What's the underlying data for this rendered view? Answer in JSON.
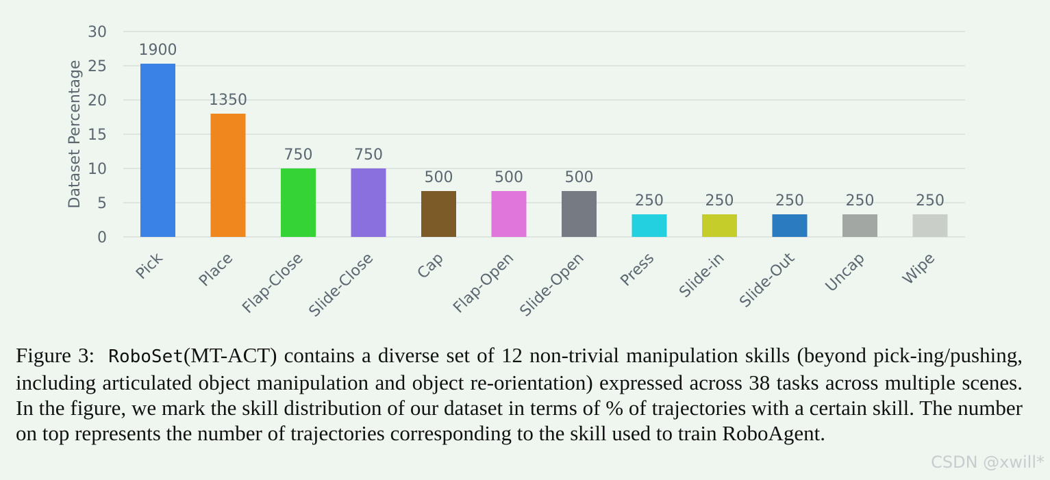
{
  "chart_data": {
    "type": "bar",
    "title": "",
    "xlabel": "",
    "ylabel": "Dataset Percentage",
    "ylim": [
      0,
      30
    ],
    "yticks": [
      0,
      5,
      10,
      15,
      20,
      25,
      30
    ],
    "grid": true,
    "categories": [
      "Pick",
      "Place",
      "Flap-Close",
      "Slide-Close",
      "Cap",
      "Flap-Open",
      "Slide-Open",
      "Press",
      "Slide-in",
      "Slide-Out",
      "Uncap",
      "Wipe"
    ],
    "values": [
      25.3,
      18.0,
      10.0,
      10.0,
      6.7,
      6.7,
      6.7,
      3.3,
      3.3,
      3.3,
      3.3,
      3.3
    ],
    "data_labels": [
      "1900",
      "1350",
      "750",
      "750",
      "500",
      "500",
      "500",
      "250",
      "250",
      "250",
      "250",
      "250"
    ],
    "colors": [
      "#3a82e6",
      "#f0861e",
      "#35d335",
      "#8a6fdf",
      "#7d5b28",
      "#e076dc",
      "#767b83",
      "#22d0e0",
      "#c5cd2b",
      "#2a7bbf",
      "#a3a7a4",
      "#c9cec8"
    ]
  },
  "caption": {
    "label": "Figure 3:",
    "name": "RoboSet",
    "text": "(MT-ACT) contains a diverse set of 12 non-trivial manipulation skills (beyond pick-ing/pushing, including articulated object manipulation and object re-orientation) expressed across 38 tasks across multiple scenes. In the figure, we mark the skill distribution of our dataset in terms of % of trajectories with a certain skill. The number on top represents the number of trajectories corresponding to the skill used to train RoboAgent."
  },
  "watermark": "CSDN @xwill*",
  "colors": {
    "background": "#eff6f0",
    "grid": "#d8dedb",
    "axis_text": "#5b6770"
  }
}
